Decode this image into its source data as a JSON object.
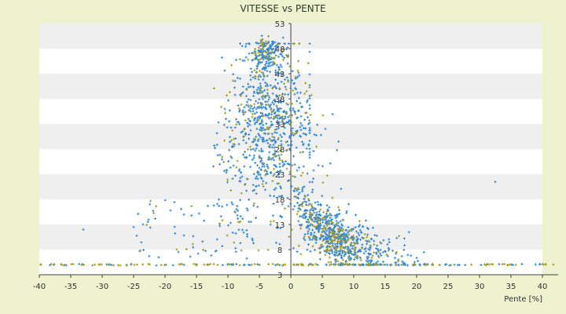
{
  "chart_data": {
    "type": "scatter",
    "title": "VITESSE vs PENTE",
    "xlabel": "Pente [%]",
    "ylabel": "",
    "xlim": [
      -40,
      42.5
    ],
    "ylim": [
      3,
      53
    ],
    "x_ticks": [
      -40,
      -35,
      -30,
      -25,
      -20,
      -15,
      -10,
      -5,
      0,
      5,
      10,
      15,
      20,
      25,
      30,
      35,
      40
    ],
    "y_ticks": [
      3,
      8,
      13,
      18,
      23,
      28,
      33,
      38,
      43,
      48,
      53
    ],
    "grid": "horizontal bands",
    "legend": "none",
    "series": [
      {
        "color": "#2f86d6",
        "count": 1500,
        "shape": "cross"
      },
      {
        "color": "#a39a20",
        "count": 420,
        "shape": "cross"
      }
    ],
    "cluster_notes": {
      "peak_speed_region": {
        "x": [
          -6,
          -1
        ],
        "y": [
          45,
          51
        ]
      },
      "dense_region": {
        "x": [
          0,
          10
        ],
        "y": [
          8,
          20
        ]
      },
      "zero_speed_band_y": 5
    }
  },
  "colors": {
    "page_background": "#eef2cf",
    "plot_background": "#ffffff",
    "band": "#efefef",
    "axis": "#444444",
    "primary_series": "#2f86d6",
    "secondary_series": "#a39a20"
  }
}
